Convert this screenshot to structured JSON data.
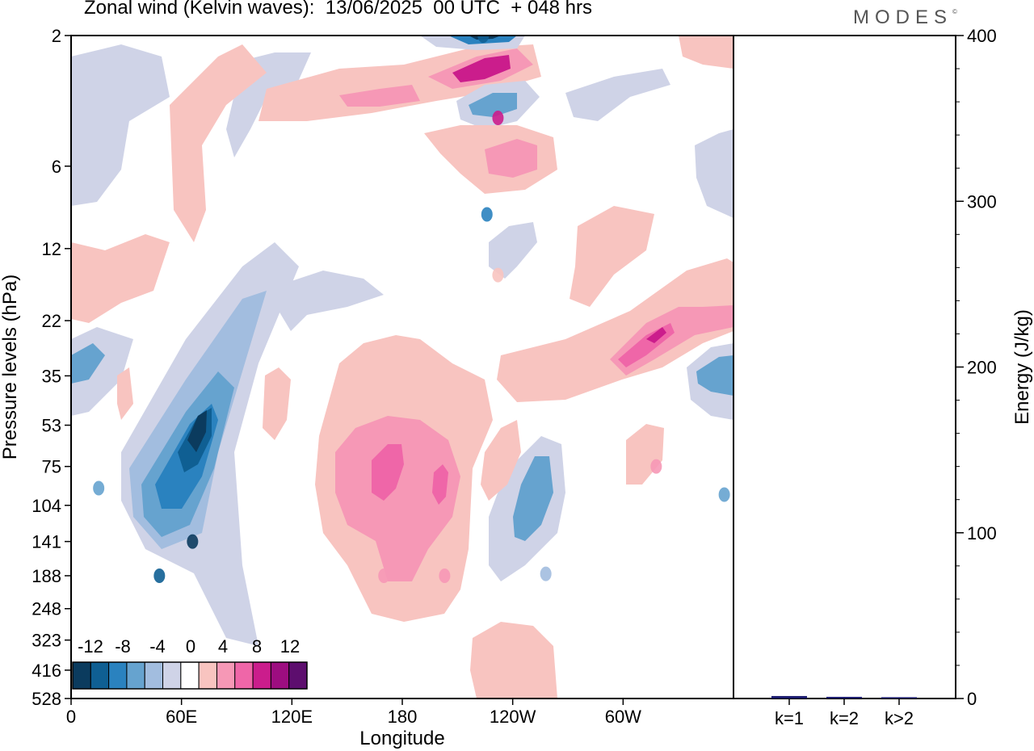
{
  "header": {
    "title": "Zonal wind (Kelvin waves):  13/06/2025  00 UTC  + 048 hrs",
    "brand": "MODES",
    "brand_mark": "©"
  },
  "colors": {
    "frame": "#000000",
    "neg": [
      "#0b3b5e",
      "#0f5f93",
      "#2a82bf",
      "#66a3cf",
      "#a2bddf",
      "#cfd3e7"
    ],
    "zero": "#ffffff",
    "pos": [
      "#f8c4c0",
      "#f698b6",
      "#ef66a8",
      "#cb1d8c",
      "#9d0d80",
      "#5d0e6e"
    ],
    "energy_bar": "#1a1a6e"
  },
  "chart_data": [
    {
      "type": "heatmap",
      "title": "Zonal wind (Kelvin waves):  13/06/2025  00 UTC  + 048 hrs",
      "xlabel": "Longitude",
      "ylabel": "Pressure levels (hPa)",
      "x_ticks": [
        "0",
        "60E",
        "120E",
        "180",
        "120W",
        "60W"
      ],
      "x_tick_lons": [
        0,
        60,
        120,
        180,
        240,
        300
      ],
      "xlim": [
        0,
        360
      ],
      "y_ticks": [
        "2",
        "6",
        "12",
        "22",
        "35",
        "53",
        "75",
        "104",
        "141",
        "188",
        "248",
        "323",
        "416",
        "528"
      ],
      "y_scale": "log",
      "ylim": [
        2,
        528
      ],
      "grid": false,
      "colorbar": {
        "labels": [
          "-12",
          "-8",
          "-4",
          "0",
          "4",
          "8",
          "12"
        ],
        "levels": [
          -14,
          -12,
          -10,
          -8,
          -6,
          -4,
          -2,
          2,
          4,
          6,
          8,
          10,
          12,
          14
        ],
        "placement": "bottom-left"
      },
      "features": [
        {
          "lon": 66,
          "p": 141,
          "value": -14
        },
        {
          "lon": 48,
          "p": 188,
          "value": -10
        },
        {
          "lon": 15,
          "p": 90,
          "value": -7
        },
        {
          "lon": 170,
          "p": 188,
          "value": 7
        },
        {
          "lon": 203,
          "p": 188,
          "value": 6
        },
        {
          "lon": 232,
          "p": 4,
          "value": 10
        },
        {
          "lon": 226,
          "p": 9,
          "value": -8
        },
        {
          "lon": 224,
          "p": 2,
          "value": -11
        },
        {
          "lon": 232,
          "p": 15,
          "value": 5
        },
        {
          "lon": 318,
          "p": 75,
          "value": 7
        },
        {
          "lon": 355,
          "p": 95,
          "value": -7
        },
        {
          "lon": 258,
          "p": 185,
          "value": -5
        }
      ]
    },
    {
      "type": "bar",
      "categories": [
        "k=1",
        "k=2",
        "k>2"
      ],
      "values": [
        1.5,
        1.0,
        0.8
      ],
      "ylabel": "Energy (J/kg)",
      "ylim": [
        0,
        400
      ],
      "y_ticks": [
        "0",
        "100",
        "200",
        "300",
        "400"
      ]
    }
  ]
}
